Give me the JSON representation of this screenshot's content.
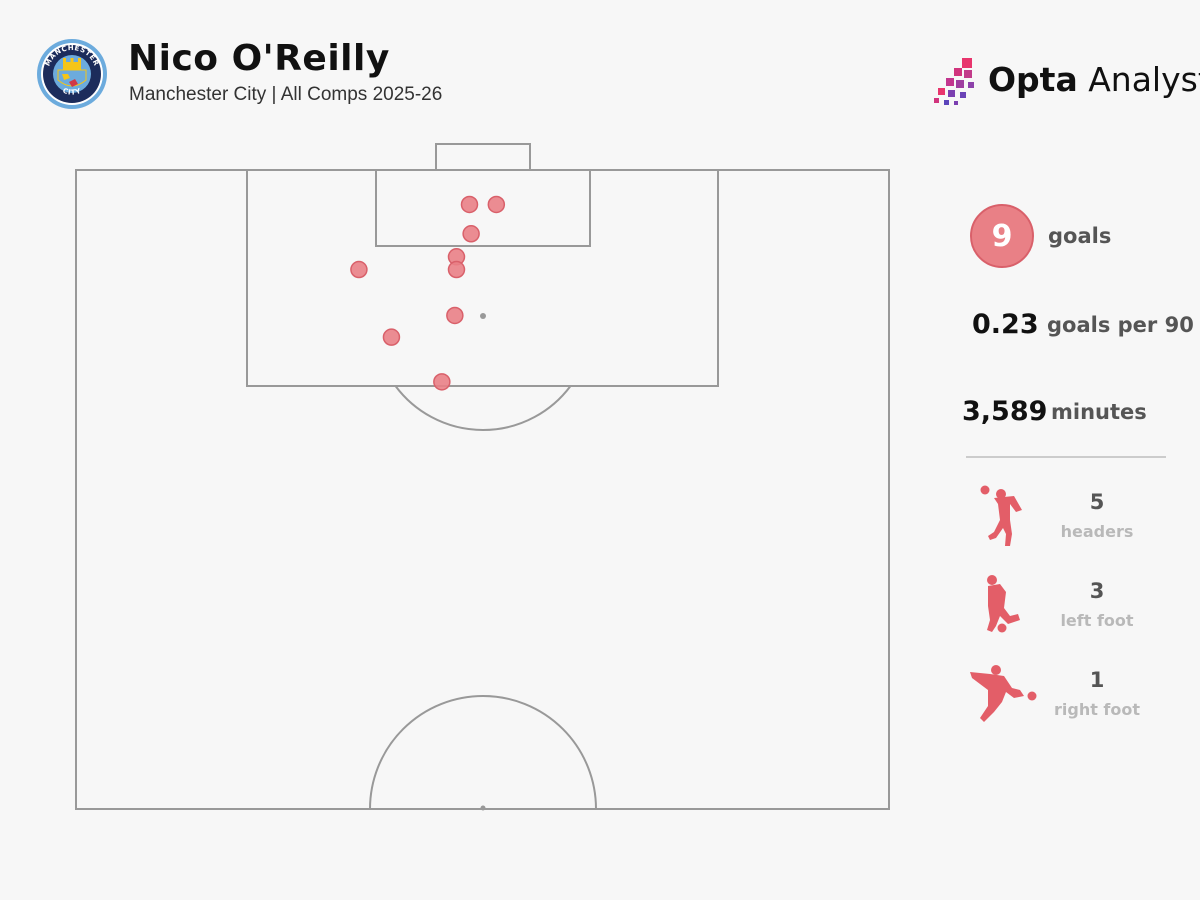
{
  "header": {
    "title": "Nico O'Reilly",
    "subtitle": "Manchester City | All Comps 2025-26"
  },
  "branding": {
    "logo_name": "opta-analyst-logo",
    "opta": "Opta",
    "analyst": "Analyst",
    "crest_name": "manchester-city-crest",
    "crest_text_top": "MANCHESTER",
    "crest_text_bottom": "CITY"
  },
  "colors": {
    "goal_dot": "#e98086",
    "goal_dot_stroke": "#d9606a",
    "pitch_line": "#999999",
    "background": "#f7f7f7"
  },
  "stats": {
    "goals_value": "9",
    "goals_label": "goals",
    "per90_value": "0.23",
    "per90_label": "goals per 90",
    "minutes_value": "3,589",
    "minutes_label": "minutes"
  },
  "goal_types": [
    {
      "icon": "header-player-icon",
      "count": "5",
      "label": "headers"
    },
    {
      "icon": "left-foot-player-icon",
      "count": "3",
      "label": "left foot"
    },
    {
      "icon": "right-foot-player-icon",
      "count": "1",
      "label": "right foot"
    }
  ],
  "chart_data": {
    "type": "scatter",
    "x_description": "pitch width, 0 = left touchline, 100 = right touchline",
    "y_description": "pitch length from goal line, 0 = goal line, 50 = halfway line",
    "xlim": [
      0,
      100
    ],
    "ylim": [
      0,
      50
    ],
    "points": [
      {
        "x": 48.4,
        "y": 2.7
      },
      {
        "x": 51.7,
        "y": 2.7
      },
      {
        "x": 48.6,
        "y": 5.0
      },
      {
        "x": 46.8,
        "y": 6.8
      },
      {
        "x": 34.8,
        "y": 7.8
      },
      {
        "x": 46.8,
        "y": 7.8
      },
      {
        "x": 46.6,
        "y": 11.4
      },
      {
        "x": 38.8,
        "y": 13.1
      },
      {
        "x": 45.0,
        "y": 16.6
      }
    ]
  }
}
